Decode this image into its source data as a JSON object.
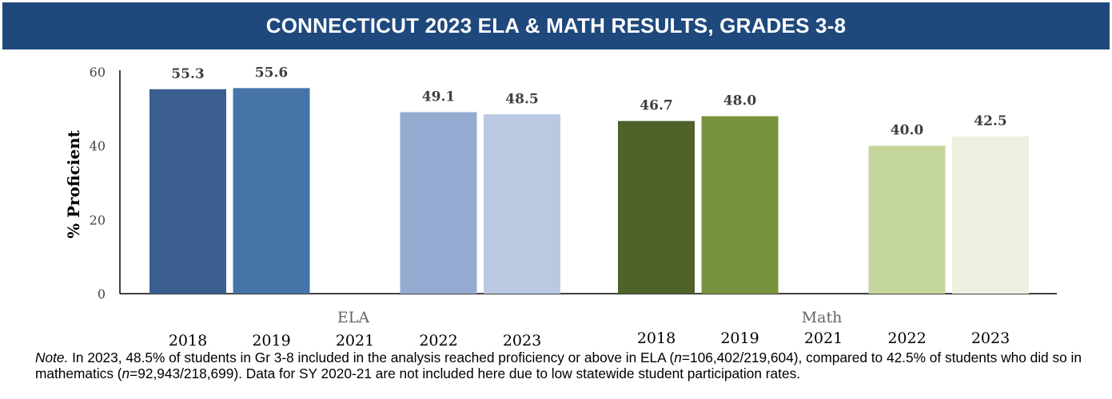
{
  "header": {
    "title": "CONNECTICUT 2023 ELA & MATH RESULTS, GRADES 3-8"
  },
  "chart_data": {
    "type": "bar",
    "title": "CONNECTICUT 2023 ELA & MATH RESULTS, GRADES 3-8",
    "ylabel": "% Proficient",
    "xlabel": "",
    "ylim": [
      0,
      60
    ],
    "yticks": [
      0,
      20,
      40,
      60
    ],
    "grid": false,
    "groups": [
      {
        "name": "ELA",
        "categories": [
          "2018",
          "2019",
          "2021",
          "2022",
          "2023"
        ],
        "values": [
          55.3,
          55.6,
          null,
          49.1,
          48.5
        ],
        "labels": [
          "55.3",
          "55.6",
          "",
          "49.1",
          "48.5"
        ],
        "colors": [
          "#3a5f8e",
          "#4574a8",
          "",
          "#95aad1",
          "#bbc8e2"
        ]
      },
      {
        "name": "Math",
        "categories": [
          "2018",
          "2019",
          "2021",
          "2022",
          "2023"
        ],
        "values": [
          46.7,
          48.0,
          null,
          40.0,
          42.5
        ],
        "labels": [
          "46.7",
          "48.0",
          "",
          "40.0",
          "42.5"
        ],
        "colors": [
          "#4e6229",
          "#77923c",
          "",
          "#c5d69c",
          "#ebf0df"
        ]
      }
    ]
  },
  "note": {
    "label": "Note.",
    "text": " In 2023, 48.5% of students in Gr 3-8 included in the analysis reached proficiency or above in ELA (n=106,402/219,604), compared to 42.5% of students who did so in mathematics (n=92,943/218,699). Data for SY 2020-21 are not included here due to low statewide student participation rates."
  }
}
